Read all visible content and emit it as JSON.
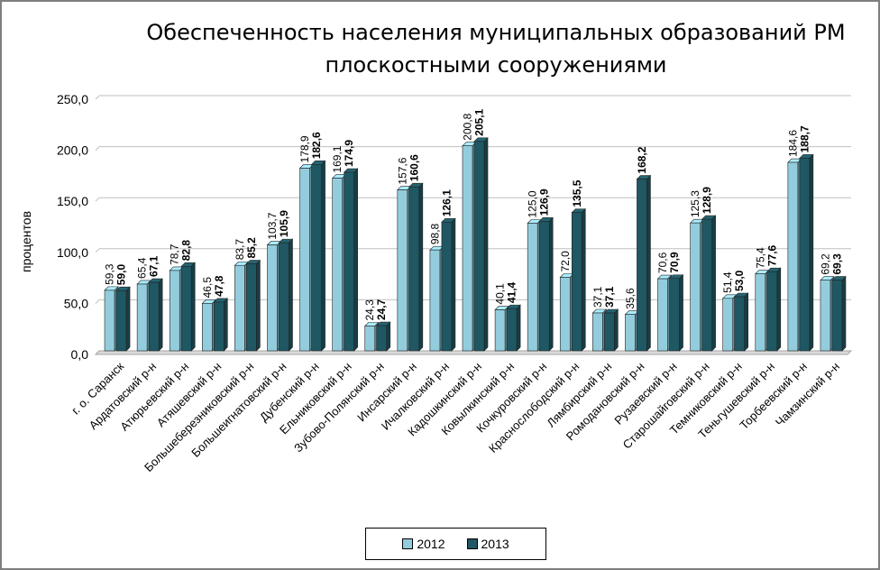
{
  "chart_data": {
    "type": "bar",
    "title_lines": [
      "Обеспеченность населения муниципальных образований РМ",
      "плоскостными сооружениями"
    ],
    "ylabel": "процентов",
    "xlabel": "",
    "ylim": [
      0,
      250
    ],
    "yticks": [
      "0,0",
      "50,0",
      "100,0",
      "150,0",
      "200,0",
      "250,0"
    ],
    "grid": true,
    "legend_position": "bottom",
    "categories": [
      "г. о. Саранск",
      "Ардатовский р-н",
      "Атюрьевский р-н",
      "Атяшевский р-н",
      "Большеберезниковский р-н",
      "Большеигнатовский р-н",
      "Дубенский р-н",
      "Ельниковский р-н",
      "Зубово-Полянский р-н",
      "Инсарский р-н",
      "Ичалковский р-н",
      "Кадошкинский р-н",
      "Ковылкинский р-н",
      "Кочкуровский р-н",
      "Краснослободский р-н",
      "Лямбирский р-н",
      "Ромодановский р-н",
      "Рузаевский р-н",
      "Старошайговский р-н",
      "Темниковский р-н",
      "Теньгушевский р-н",
      "Торбеевский р-н",
      "Чамзинский р-н"
    ],
    "series": [
      {
        "name": "2012",
        "color": "#93cddd",
        "values": [
          59.3,
          65.4,
          78.7,
          46.5,
          83.7,
          103.7,
          178.9,
          169.1,
          24.3,
          157.6,
          98.8,
          200.8,
          40.1,
          125.0,
          72.0,
          37.1,
          35.6,
          70.6,
          125.3,
          51.4,
          75.4,
          184.6,
          69.2
        ],
        "labels": [
          "59,3",
          "65,4",
          "78,7",
          "46,5",
          "83,7",
          "103,7",
          "178,9",
          "169,1",
          "24,3",
          "157,6",
          "98,8",
          "200,8",
          "40,1",
          "125,0",
          "72,0",
          "37,1",
          "35,6",
          "70,6",
          "125,3",
          "51,4",
          "75,4",
          "184,6",
          "69,2"
        ]
      },
      {
        "name": "2013",
        "color": "#1f5763",
        "values": [
          59.0,
          67.1,
          82.8,
          47.8,
          85.2,
          105.9,
          182.6,
          174.9,
          24.7,
          160.6,
          126.1,
          205.1,
          41.4,
          126.9,
          135.5,
          37.1,
          168.2,
          70.9,
          128.9,
          53.0,
          77.6,
          188.7,
          69.3
        ],
        "labels": [
          "59,0",
          "67,1",
          "82,8",
          "47,8",
          "85,2",
          "105,9",
          "182,6",
          "174,9",
          "24,7",
          "160,6",
          "126,1",
          "205,1",
          "41,4",
          "126,9",
          "135,5",
          "37,1",
          "168,2",
          "70,9",
          "128,9",
          "53,0",
          "77,6",
          "188,7",
          "69,3"
        ]
      }
    ],
    "label_2012_shown": [
      true,
      true,
      true,
      true,
      true,
      true,
      true,
      true,
      true,
      true,
      true,
      true,
      true,
      true,
      true,
      true,
      true,
      true,
      true,
      true,
      true,
      true,
      true
    ],
    "label_2013_shown": [
      true,
      true,
      true,
      true,
      true,
      true,
      true,
      true,
      true,
      true,
      true,
      true,
      true,
      true,
      true,
      true,
      true,
      true,
      true,
      true,
      true,
      true,
      true
    ]
  }
}
